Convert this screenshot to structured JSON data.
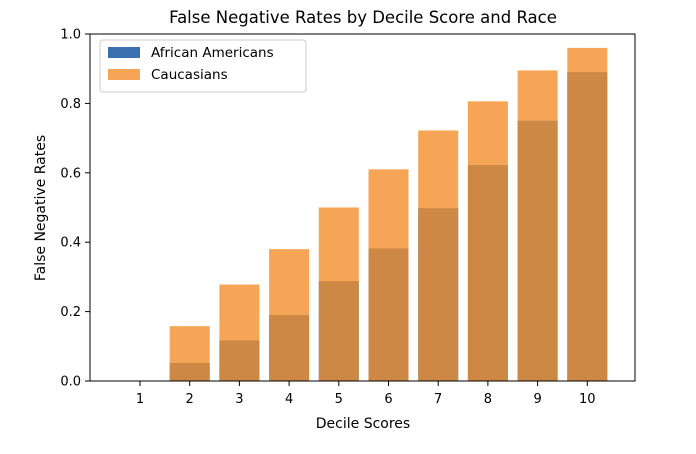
{
  "chart_data": {
    "type": "bar",
    "title": "False Negative Rates by Decile Score and Race",
    "xlabel": "Decile Scores",
    "ylabel": "False Negative Rates",
    "categories": [
      "1",
      "2",
      "3",
      "4",
      "5",
      "6",
      "7",
      "8",
      "9",
      "10"
    ],
    "ylim": [
      0,
      1.0
    ],
    "yticks": [
      "0.0",
      "0.2",
      "0.4",
      "0.6",
      "0.8",
      "1.0"
    ],
    "grid": false,
    "overlay": true,
    "legend_position": "top-left",
    "series": [
      {
        "name": "African Americans",
        "color": "#3a6fb0",
        "values": [
          0.0,
          0.052,
          0.117,
          0.19,
          0.288,
          0.382,
          0.498,
          0.622,
          0.75,
          0.89
        ]
      },
      {
        "name": "Caucasians",
        "color": "#f28e2b",
        "opacity": 0.8,
        "values": [
          0.0,
          0.158,
          0.278,
          0.38,
          0.5,
          0.61,
          0.722,
          0.806,
          0.895,
          0.96
        ]
      }
    ]
  }
}
